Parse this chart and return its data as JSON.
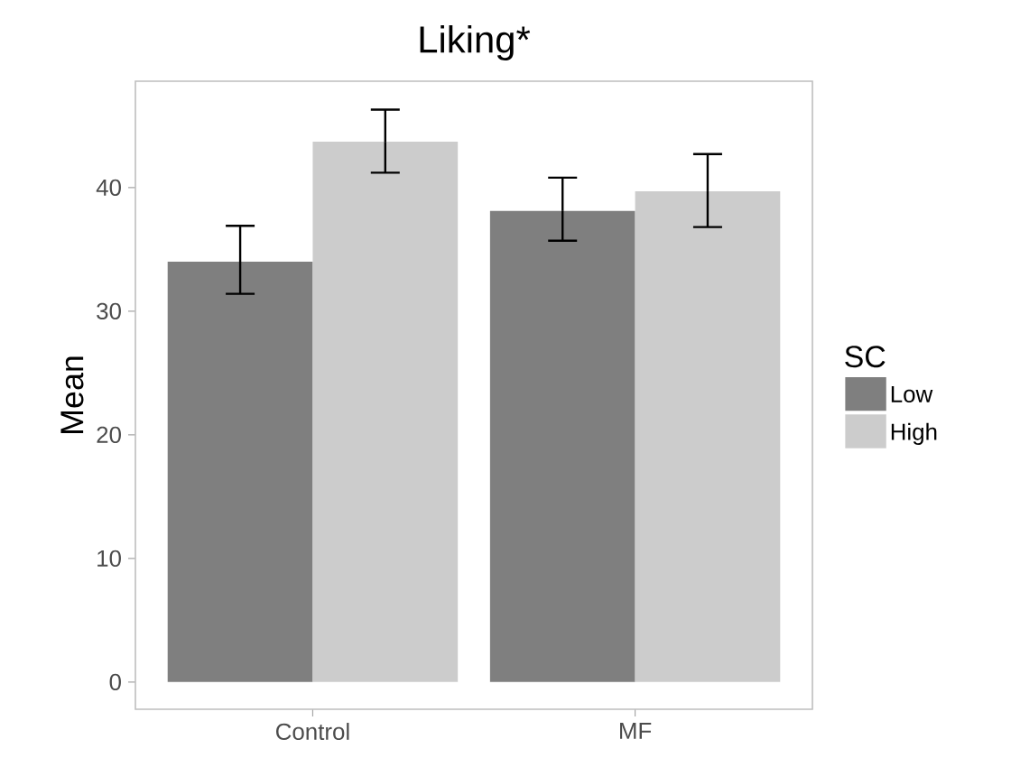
{
  "chart_data": {
    "type": "bar",
    "title": "Liking*",
    "ylabel": "Mean",
    "legend_title": "SC",
    "categories": [
      "Control",
      "MF"
    ],
    "series": [
      {
        "name": "Low",
        "color": "#7f7f7f",
        "values": [
          34.0,
          38.1
        ],
        "errors": [
          [
            31.4,
            36.9
          ],
          [
            35.7,
            40.8
          ]
        ]
      },
      {
        "name": "High",
        "color": "#cccccc",
        "values": [
          43.7,
          39.7
        ],
        "errors": [
          [
            41.2,
            46.3
          ],
          [
            36.8,
            42.7
          ]
        ]
      }
    ],
    "ylim": [
      -2.2,
      48.6
    ],
    "yticks": [
      0,
      10,
      20,
      30,
      40
    ],
    "grid": false,
    "legend": "right"
  }
}
